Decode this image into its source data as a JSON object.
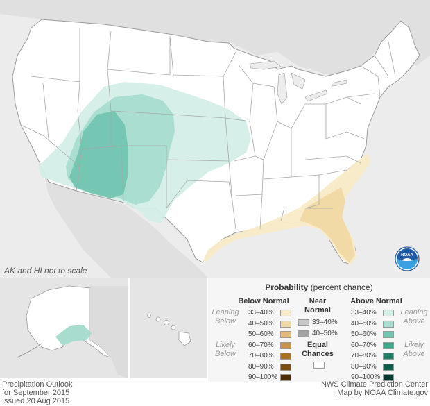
{
  "notes": {
    "scale_note": "AK and HI not to scale"
  },
  "footer": {
    "left_lines": [
      "Precipitation Outlook",
      "for September 2015",
      "Issued 20 Aug 2015"
    ],
    "right_lines": [
      "NWS Climate Prediction Center",
      "Map by NOAA Climate.gov"
    ]
  },
  "logo": {
    "text": "NOAA"
  },
  "legend": {
    "title_bold": "Probability",
    "title_rest": " (percent chance)",
    "below": {
      "header": "Below Normal",
      "leaning_label": [
        "Leaning",
        "Below"
      ],
      "likely_label": [
        "Likely",
        "Below"
      ],
      "items": [
        {
          "label": "33–40%",
          "color": "#f8ebc7"
        },
        {
          "label": "40–50%",
          "color": "#f0d9a3"
        },
        {
          "label": "50–60%",
          "color": "#dfb87a"
        },
        {
          "label": "60–70%",
          "color": "#c89248"
        },
        {
          "label": "70–80%",
          "color": "#a9701f"
        },
        {
          "label": "80–90%",
          "color": "#7d4f0f"
        },
        {
          "label": "90–100%",
          "color": "#4d2d06"
        }
      ]
    },
    "near": {
      "header": [
        "Near",
        "Normal"
      ],
      "items": [
        {
          "label": "33–40%",
          "color": "#c7c7c7"
        },
        {
          "label": "40–50%",
          "color": "#a3a3a3"
        }
      ]
    },
    "equal": {
      "header": [
        "Equal",
        "Chances"
      ],
      "color": "#ffffff"
    },
    "above": {
      "header": "Above Normal",
      "leaning_label": [
        "Leaning",
        "Above"
      ],
      "likely_label": [
        "Likely",
        "Above"
      ],
      "items": [
        {
          "label": "33–40%",
          "color": "#d4eee8"
        },
        {
          "label": "40–50%",
          "color": "#a7dccf"
        },
        {
          "label": "50–60%",
          "color": "#72c4b0"
        },
        {
          "label": "60–70%",
          "color": "#3fa68e"
        },
        {
          "label": "70–80%",
          "color": "#1f8068"
        },
        {
          "label": "80–90%",
          "color": "#0f5e4b"
        },
        {
          "label": "90–100%",
          "color": "#06382d"
        }
      ]
    }
  }
}
